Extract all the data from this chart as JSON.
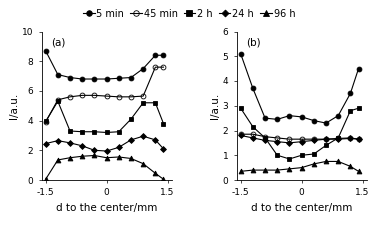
{
  "panel_a": {
    "label": "(a)",
    "ylim": [
      0,
      10
    ],
    "yticks": [
      0,
      2,
      4,
      6,
      8,
      10
    ],
    "ylabel": "I/a.u.",
    "xlabel": "d to the center/mm",
    "xlim": [
      -1.6,
      1.6
    ],
    "xticks": [
      -1.5,
      0.0,
      1.5
    ],
    "xticklabels": [
      "-1.5",
      "0",
      "1.5"
    ],
    "series": {
      "5min": {
        "x": [
          -1.5,
          -1.2,
          -0.9,
          -0.6,
          -0.3,
          0.0,
          0.3,
          0.6,
          0.9,
          1.2,
          1.4
        ],
        "y": [
          8.7,
          7.1,
          6.9,
          6.8,
          6.8,
          6.8,
          6.85,
          6.9,
          7.5,
          8.4,
          8.4
        ],
        "marker": "o",
        "fillstyle": "full",
        "ms": 3.5
      },
      "45min": {
        "x": [
          -1.5,
          -1.2,
          -0.9,
          -0.6,
          -0.3,
          0.0,
          0.3,
          0.6,
          0.9,
          1.2,
          1.4
        ],
        "y": [
          3.9,
          5.4,
          5.6,
          5.7,
          5.7,
          5.65,
          5.6,
          5.6,
          5.65,
          7.6,
          7.6
        ],
        "marker": "o",
        "fillstyle": "none",
        "ms": 3.5
      },
      "2h": {
        "x": [
          -1.5,
          -1.2,
          -0.9,
          -0.6,
          -0.3,
          0.0,
          0.3,
          0.6,
          0.9,
          1.2,
          1.4
        ],
        "y": [
          3.95,
          5.3,
          3.3,
          3.25,
          3.25,
          3.2,
          3.25,
          4.1,
          5.2,
          5.2,
          3.8
        ],
        "marker": "s",
        "fillstyle": "full",
        "ms": 3.5
      },
      "24h": {
        "x": [
          -1.5,
          -1.2,
          -0.9,
          -0.6,
          -0.3,
          0.0,
          0.3,
          0.6,
          0.9,
          1.2,
          1.4
        ],
        "y": [
          2.45,
          2.65,
          2.5,
          2.3,
          2.0,
          1.95,
          2.2,
          2.7,
          2.95,
          2.7,
          2.1
        ],
        "marker": "D",
        "fillstyle": "full",
        "ms": 3.0
      },
      "96h": {
        "x": [
          -1.5,
          -1.2,
          -0.9,
          -0.6,
          -0.3,
          0.0,
          0.3,
          0.6,
          0.9,
          1.2,
          1.4
        ],
        "y": [
          0.05,
          1.35,
          1.5,
          1.6,
          1.65,
          1.5,
          1.55,
          1.45,
          1.1,
          0.45,
          0.05
        ],
        "marker": "^",
        "fillstyle": "full",
        "ms": 3.5
      }
    }
  },
  "panel_b": {
    "label": "(b)",
    "ylim": [
      0,
      6
    ],
    "yticks": [
      0,
      1,
      2,
      3,
      4,
      5,
      6
    ],
    "ylabel": "I/a.u.",
    "xlabel": "d to the center/mm",
    "xlim": [
      -1.6,
      1.6
    ],
    "xticks": [
      -1.5,
      0.0,
      1.5
    ],
    "xticklabels": [
      "-1.5",
      "0",
      "1.5"
    ],
    "series": {
      "5min": {
        "x": [
          -1.5,
          -1.2,
          -0.9,
          -0.6,
          -0.3,
          0.0,
          0.3,
          0.6,
          0.9,
          1.2,
          1.4
        ],
        "y": [
          5.1,
          3.7,
          2.5,
          2.45,
          2.6,
          2.55,
          2.4,
          2.3,
          2.6,
          3.5,
          4.5
        ],
        "marker": "o",
        "fillstyle": "full",
        "ms": 3.5
      },
      "45min": {
        "x": [
          -1.5,
          -1.2,
          -0.9,
          -0.6,
          -0.3,
          0.0,
          0.3,
          0.6,
          0.9,
          1.2,
          1.4
        ],
        "y": [
          1.85,
          1.85,
          1.75,
          1.7,
          1.65,
          1.65,
          1.65,
          1.65,
          1.68,
          1.7,
          1.65
        ],
        "marker": "o",
        "fillstyle": "none",
        "ms": 3.5
      },
      "2h": {
        "x": [
          -1.5,
          -1.2,
          -0.9,
          -0.6,
          -0.3,
          0.0,
          0.3,
          0.6,
          0.9,
          1.2,
          1.4
        ],
        "y": [
          2.9,
          2.15,
          1.7,
          1.0,
          0.85,
          1.0,
          1.05,
          1.4,
          1.7,
          2.8,
          2.9
        ],
        "marker": "s",
        "fillstyle": "full",
        "ms": 3.5
      },
      "24h": {
        "x": [
          -1.5,
          -1.2,
          -0.9,
          -0.6,
          -0.3,
          0.0,
          0.3,
          0.6,
          0.9,
          1.2,
          1.4
        ],
        "y": [
          1.8,
          1.7,
          1.6,
          1.55,
          1.5,
          1.55,
          1.6,
          1.65,
          1.65,
          1.68,
          1.65
        ],
        "marker": "D",
        "fillstyle": "full",
        "ms": 3.0
      },
      "96h": {
        "x": [
          -1.5,
          -1.2,
          -0.9,
          -0.6,
          -0.3,
          0.0,
          0.3,
          0.6,
          0.9,
          1.2,
          1.4
        ],
        "y": [
          0.35,
          0.4,
          0.4,
          0.4,
          0.45,
          0.5,
          0.65,
          0.75,
          0.75,
          0.55,
          0.35
        ],
        "marker": "^",
        "fillstyle": "full",
        "ms": 3.5
      }
    }
  },
  "series_order": [
    "5min",
    "45min",
    "2h",
    "24h",
    "96h"
  ],
  "legend_info": [
    {
      "label": "5 min",
      "marker": "o",
      "fillstyle": "full",
      "ms": 4
    },
    {
      "label": "45 min",
      "marker": "o",
      "fillstyle": "none",
      "ms": 4
    },
    {
      "label": "2 h",
      "marker": "s",
      "fillstyle": "full",
      "ms": 4
    },
    {
      "label": "24 h",
      "marker": "D",
      "fillstyle": "full",
      "ms": 3.5
    },
    {
      "label": "96 h",
      "marker": "^",
      "fillstyle": "full",
      "ms": 4
    }
  ],
  "line_color": "black",
  "bg_color": "white",
  "tick_fontsize": 6.5,
  "label_fontsize": 7.5,
  "legend_fontsize": 7
}
